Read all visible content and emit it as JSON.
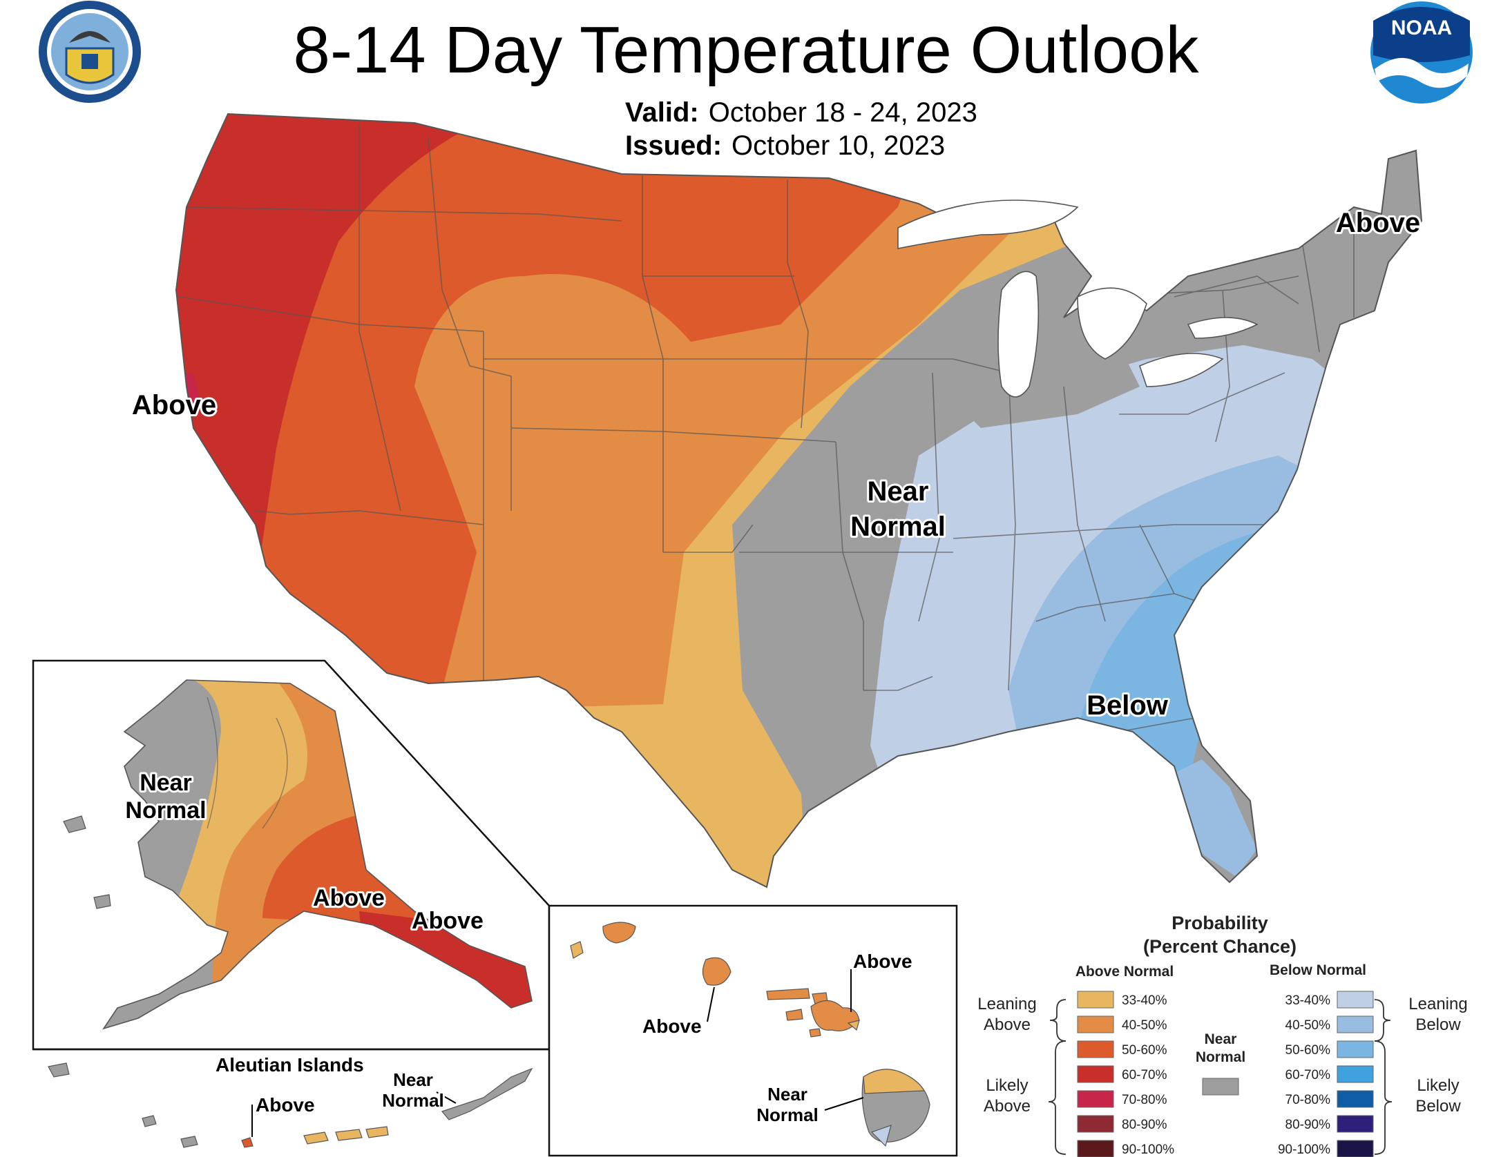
{
  "title": "8-14 Day Temperature Outlook",
  "valid_label": "Valid:",
  "valid_dates": "October 18 - 24, 2023",
  "issued_label": "Issued:",
  "issued_date": "October 10, 2023",
  "logos": {
    "left": "department-of-commerce-seal",
    "right": "noaa-logo"
  },
  "map_labels": {
    "conus_above_west": "Above",
    "conus_above_northeast": "Above",
    "conus_near_normal": [
      "Near",
      "Normal"
    ],
    "conus_below": "Below",
    "alaska_near_normal": [
      "Near",
      "Normal"
    ],
    "alaska_above_south": "Above",
    "alaska_above_panhandle": "Above",
    "aleutian_title": "Aleutian Islands",
    "aleutian_above": "Above",
    "aleutian_near_normal": [
      "Near",
      "Normal"
    ],
    "hawaii_above_maui": "Above",
    "hawaii_above_oahu": "Above",
    "hawaii_near_normal": [
      "Near",
      "Normal"
    ]
  },
  "legend": {
    "title": "Probability",
    "subtitle": "(Percent Chance)",
    "above_header": "Above Normal",
    "below_header": "Below Normal",
    "near_label": [
      "Near",
      "Normal"
    ],
    "near_color": "#9e9e9e",
    "leaning_above": [
      "Leaning",
      "Above"
    ],
    "likely_above": [
      "Likely",
      "Above"
    ],
    "leaning_below": [
      "Leaning",
      "Below"
    ],
    "likely_below": [
      "Likely",
      "Below"
    ],
    "above": [
      {
        "range": "33-40%",
        "color": "#e8b560"
      },
      {
        "range": "40-50%",
        "color": "#e38c45"
      },
      {
        "range": "50-60%",
        "color": "#dd5a2c"
      },
      {
        "range": "60-70%",
        "color": "#c82f2a"
      },
      {
        "range": "70-80%",
        "color": "#c7264a"
      },
      {
        "range": "80-90%",
        "color": "#8e2a34"
      },
      {
        "range": "90-100%",
        "color": "#5a1a1c"
      }
    ],
    "below": [
      {
        "range": "33-40%",
        "color": "#bfcfe6"
      },
      {
        "range": "40-50%",
        "color": "#98bde0"
      },
      {
        "range": "50-60%",
        "color": "#7bb6e2"
      },
      {
        "range": "60-70%",
        "color": "#3fa2de"
      },
      {
        "range": "70-80%",
        "color": "#0d5ea6"
      },
      {
        "range": "80-90%",
        "color": "#2e1f7a"
      },
      {
        "range": "90-100%",
        "color": "#1a1447"
      }
    ]
  }
}
